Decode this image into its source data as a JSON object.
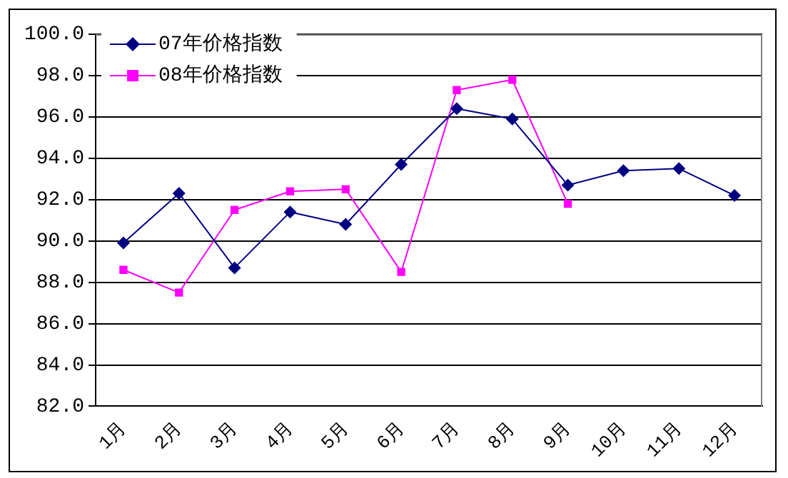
{
  "chart_data": {
    "type": "line",
    "categories": [
      "1月",
      "2月",
      "3月",
      "4月",
      "5月",
      "6月",
      "7月",
      "8月",
      "9月",
      "10月",
      "11月",
      "12月"
    ],
    "series": [
      {
        "name": "07年价格指数",
        "color": "#000080",
        "marker": "diamond",
        "values": [
          89.9,
          92.3,
          88.7,
          91.4,
          90.8,
          93.7,
          96.4,
          95.9,
          92.7,
          93.4,
          93.5,
          92.2
        ]
      },
      {
        "name": "08年价格指数",
        "color": "#ff00ff",
        "marker": "square",
        "values": [
          88.6,
          87.5,
          91.5,
          92.4,
          92.5,
          88.5,
          97.3,
          97.8,
          91.8,
          null,
          null,
          null
        ]
      }
    ],
    "ylim": [
      82,
      100
    ],
    "yticks": [
      {
        "value": 82,
        "label": "82.0"
      },
      {
        "value": 84,
        "label": "84.0"
      },
      {
        "value": 86,
        "label": "86.0"
      },
      {
        "value": 88,
        "label": "88.0"
      },
      {
        "value": 90,
        "label": "90.0"
      },
      {
        "value": 92,
        "label": "92.0"
      },
      {
        "value": 94,
        "label": "94.0"
      },
      {
        "value": 96,
        "label": "96.0"
      },
      {
        "value": 98,
        "label": "98.0"
      },
      {
        "value": 100,
        "label": "100.0"
      }
    ],
    "grid": "y",
    "legend": "top left",
    "line_style": "solid"
  }
}
